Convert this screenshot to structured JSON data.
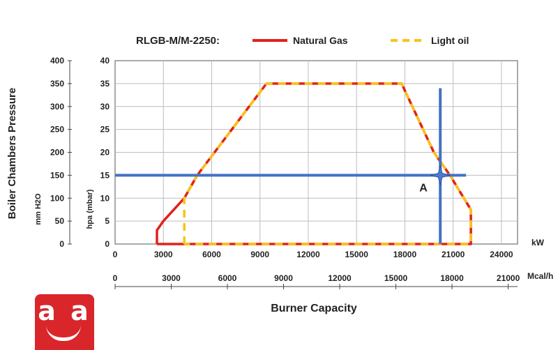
{
  "chart_data": {
    "type": "line",
    "title": "RLGB-M/M-2250:",
    "legend_position": "top",
    "grid": true,
    "series": [
      {
        "name": "Natural Gas",
        "color": "#e3201b",
        "style": "solid",
        "points": [
          [
            2600,
            0
          ],
          [
            2600,
            3
          ],
          [
            3000,
            5
          ],
          [
            4300,
            10
          ],
          [
            5100,
            15
          ],
          [
            9400,
            35
          ],
          [
            17800,
            35
          ],
          [
            19800,
            20
          ],
          [
            20800,
            15
          ],
          [
            22100,
            7.5
          ],
          [
            22100,
            0
          ],
          [
            2600,
            0
          ]
        ]
      },
      {
        "name": "Light oil",
        "color": "#f5c518",
        "style": "dashed",
        "points": [
          [
            4300,
            0
          ],
          [
            4300,
            10
          ],
          [
            5100,
            15
          ],
          [
            9400,
            35
          ],
          [
            17800,
            35
          ],
          [
            19800,
            20
          ],
          [
            20800,
            15
          ],
          [
            22100,
            7.5
          ],
          [
            22100,
            0
          ],
          [
            4300,
            0
          ]
        ]
      }
    ],
    "y_left_outer": {
      "label": "Boiler Chambers Pressure",
      "unit": "mm H2O",
      "range": [
        0,
        400
      ],
      "ticks": [
        "0",
        "50",
        "100",
        "150",
        "200",
        "250",
        "300",
        "350",
        "400"
      ]
    },
    "y_left_inner": {
      "label": "hpa (mbar)",
      "range": [
        0,
        40
      ],
      "ticks": [
        "0",
        "5",
        "10",
        "15",
        "20",
        "25",
        "30",
        "35",
        "40"
      ]
    },
    "x_primary": {
      "unit": "kW",
      "range": [
        0,
        25000
      ],
      "tick_values": [
        0,
        3000,
        6000,
        9000,
        12000,
        15000,
        18000,
        21000,
        24000
      ],
      "ticks": [
        "0",
        "3000",
        "6000",
        "9000",
        "12000",
        "15000",
        "18000",
        "21000",
        "24000"
      ]
    },
    "x_secondary": {
      "unit": "Mcal/h",
      "range": [
        0,
        21500
      ],
      "tick_values": [
        0,
        3000,
        6000,
        9000,
        12000,
        15000,
        18000,
        21000
      ],
      "ticks": [
        "0",
        "3000",
        "6000",
        "9000",
        "12000",
        "15000",
        "18000",
        "21000"
      ]
    },
    "xlabel": "Burner Capacity",
    "operating_point": {
      "label": "A",
      "x_kw": 20200,
      "y_mbar": 15,
      "color": "#4472c4",
      "vertical_line_y": [
        0,
        34
      ],
      "horizontal_line_x": [
        0,
        21800
      ]
    }
  },
  "logo": {
    "text": "a a",
    "color": "#d9262b"
  }
}
